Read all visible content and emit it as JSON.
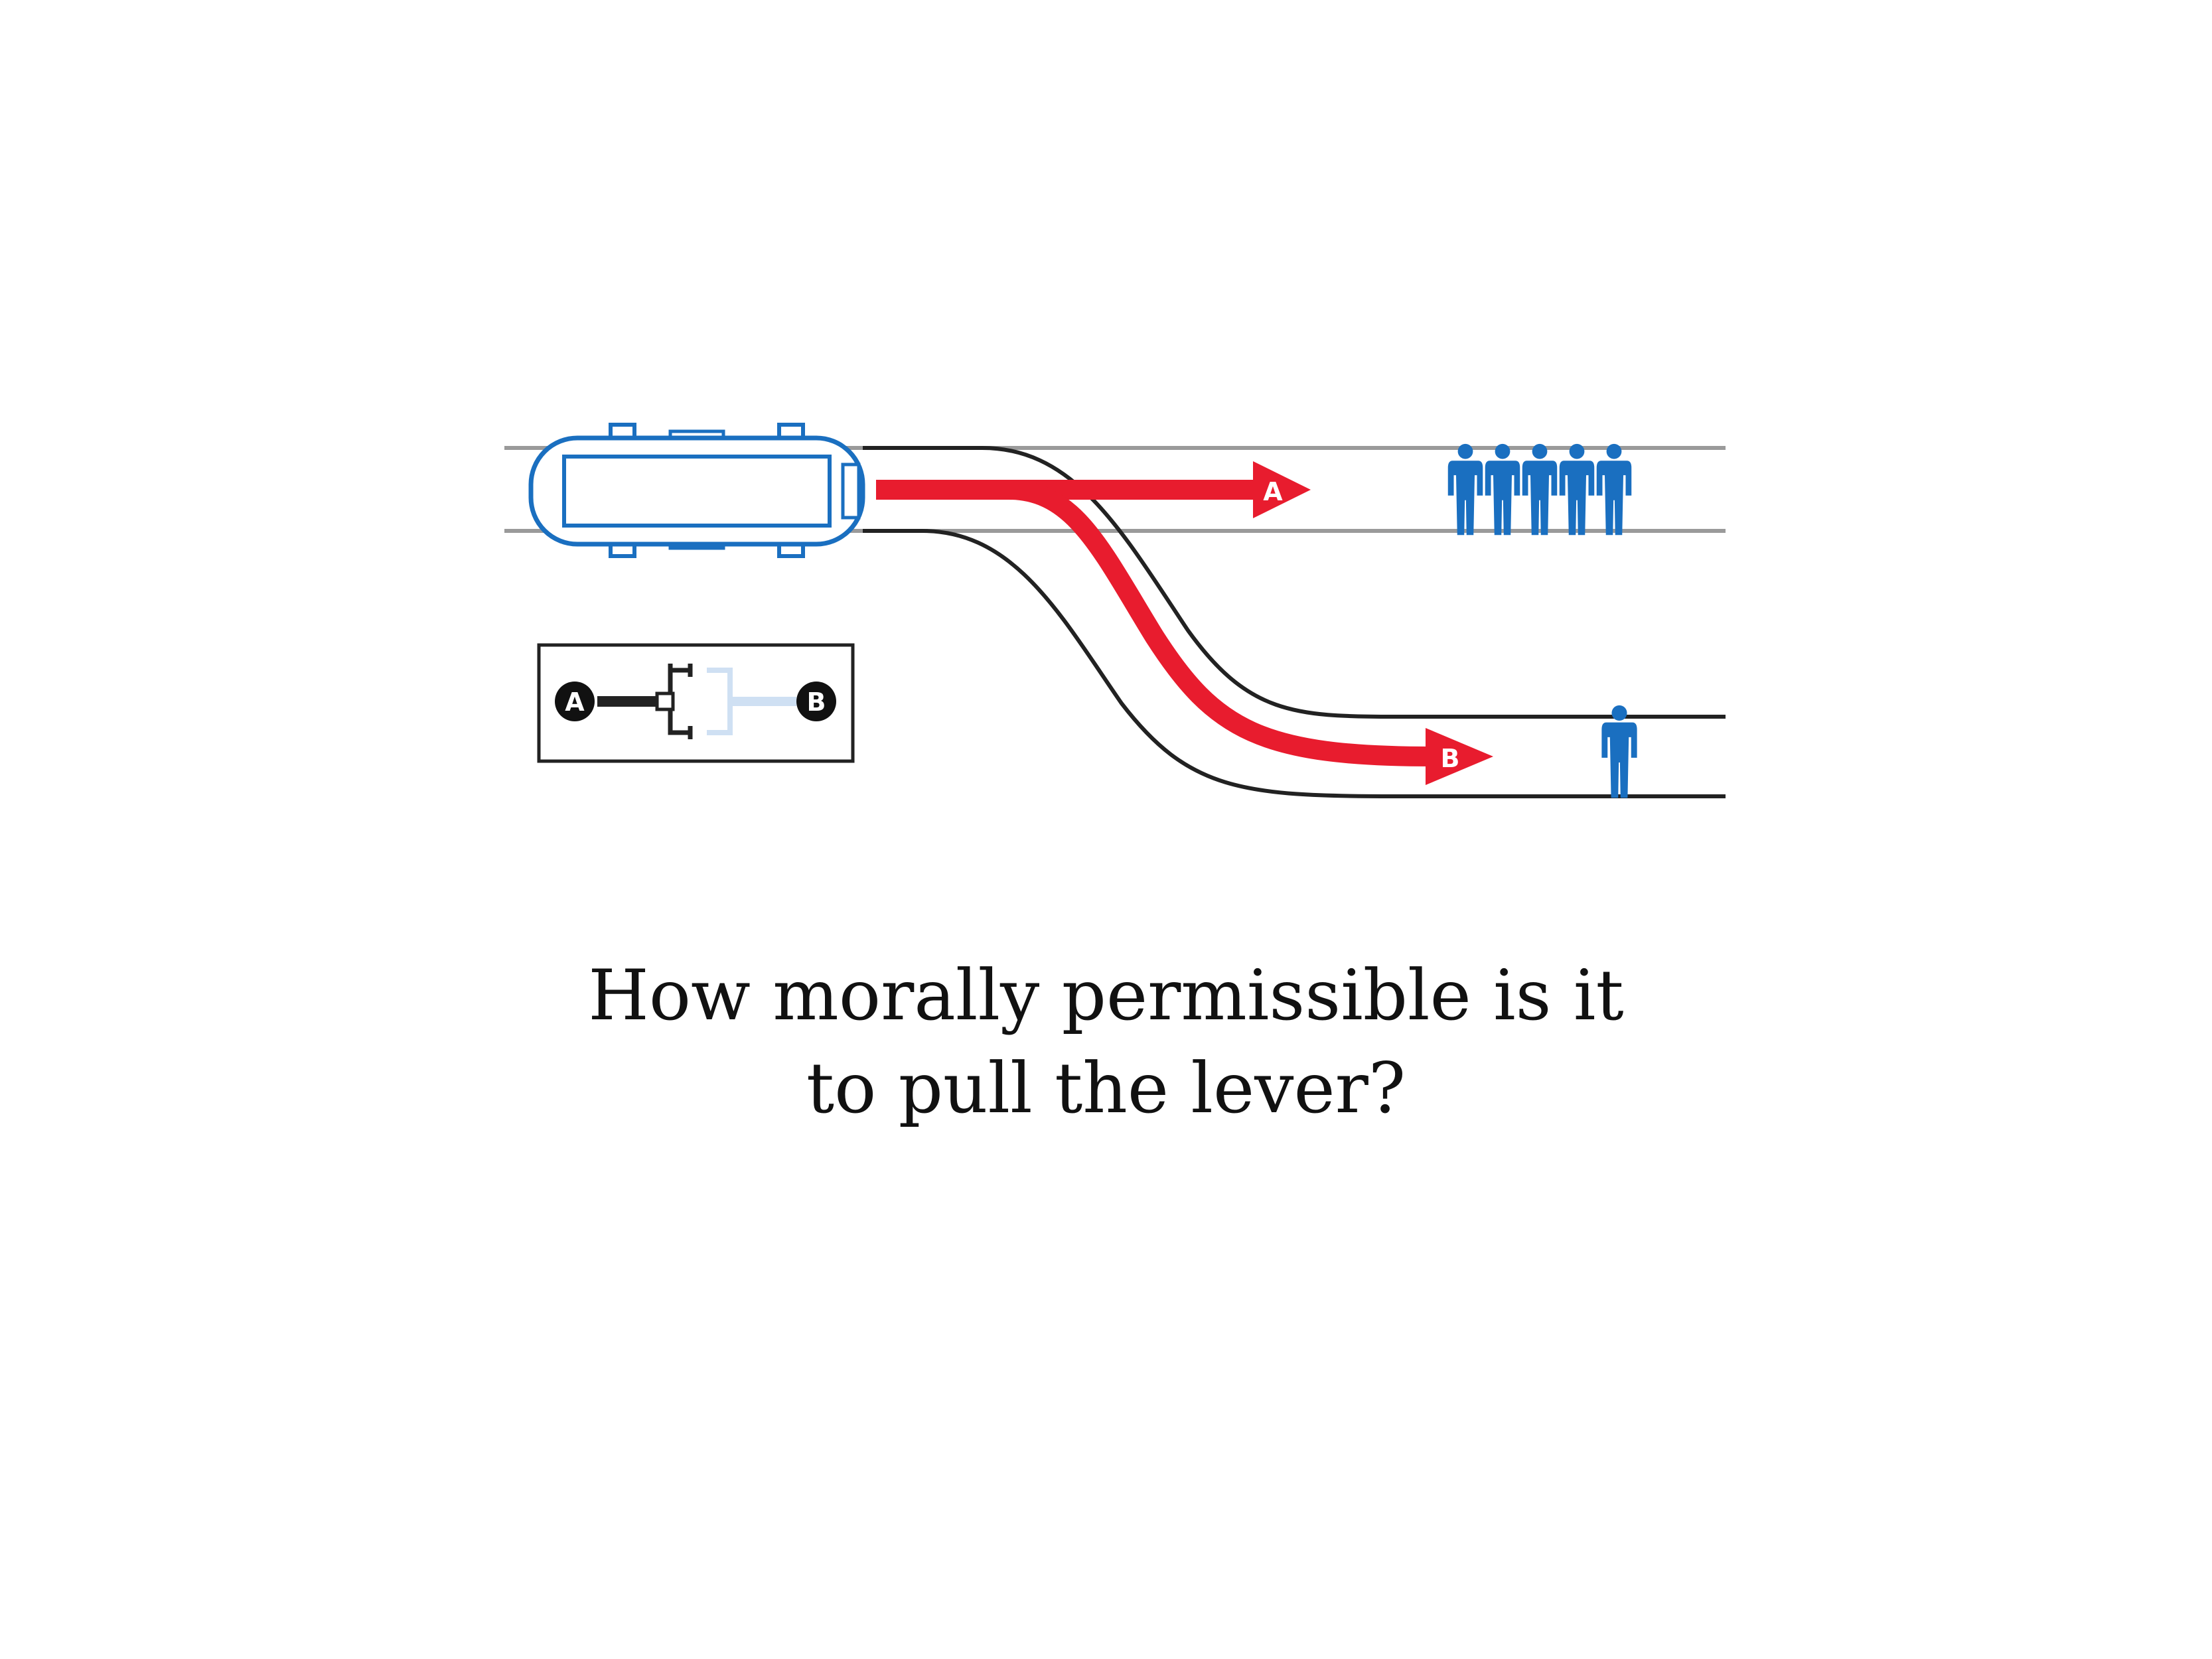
{
  "question": {
    "line1": "How morally permissible is it",
    "line2": "to pull the lever?"
  },
  "diagram": {
    "track_a_label": "A",
    "track_b_label": "B",
    "lever_label_a": "A",
    "lever_label_b": "B",
    "people_on_track_a": 5,
    "people_on_track_b": 1,
    "colors": {
      "trolley": "#1a6fc0",
      "arrow": "#e81c2e",
      "person": "#1a6fc0",
      "rail_gray": "#9a9a9a",
      "rail_black": "#222222"
    }
  }
}
